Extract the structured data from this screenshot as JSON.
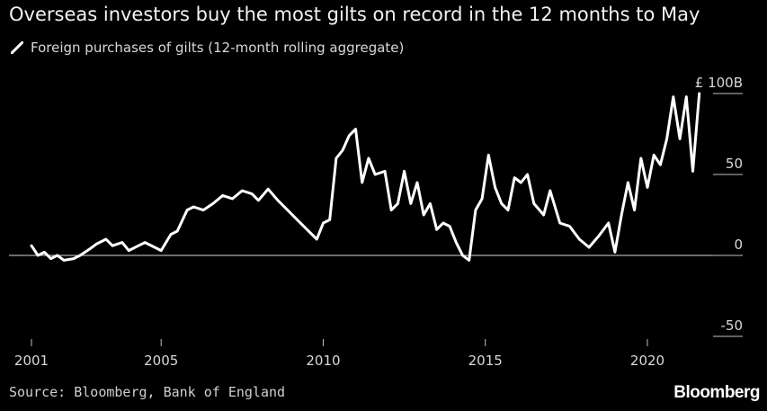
{
  "title": "Overseas investors buy the most gilts on record in the 12 months to May",
  "source": "Source: Bloomberg, Bank of England",
  "brand": "Bloomberg",
  "colors": {
    "background": "#000000",
    "line": "#ffffff",
    "text": "#d8d8d8"
  },
  "chart_data": {
    "type": "line",
    "title": "Overseas investors buy the most gilts on record in the 12 months to May",
    "xlabel": "",
    "ylabel": "",
    "y_unit_prefix": "£",
    "y_unit_suffix": "B",
    "xlim": [
      2001,
      2021.7
    ],
    "ylim": [
      -50,
      100
    ],
    "y_ticks": [
      100,
      50,
      0,
      -50
    ],
    "y_tick_labels": [
      "£ 100B",
      "50",
      "0",
      "-50"
    ],
    "x_ticks": [
      2001,
      2005,
      2010,
      2015,
      2020
    ],
    "x_tick_labels": [
      "2001",
      "2005",
      "2010",
      "2015",
      "2020"
    ],
    "legend": "top-left",
    "grid": false,
    "series": [
      {
        "name": "Foreign purchases of gilts (12-month rolling aggregate)",
        "x": [
          2001.0,
          2001.2,
          2001.4,
          2001.6,
          2001.8,
          2002.0,
          2002.3,
          2002.5,
          2002.8,
          2003.0,
          2003.3,
          2003.5,
          2003.8,
          2004.0,
          2004.3,
          2004.5,
          2004.8,
          2005.0,
          2005.3,
          2005.5,
          2005.8,
          2006.0,
          2006.3,
          2006.6,
          2006.9,
          2007.2,
          2007.5,
          2007.8,
          2008.0,
          2008.3,
          2008.6,
          2008.9,
          2009.2,
          2009.5,
          2009.8,
          2010.0,
          2010.2,
          2010.4,
          2010.6,
          2010.8,
          2011.0,
          2011.2,
          2011.4,
          2011.6,
          2011.9,
          2012.1,
          2012.3,
          2012.5,
          2012.7,
          2012.9,
          2013.1,
          2013.3,
          2013.5,
          2013.7,
          2013.9,
          2014.1,
          2014.3,
          2014.5,
          2014.7,
          2014.9,
          2015.1,
          2015.3,
          2015.5,
          2015.7,
          2015.9,
          2016.1,
          2016.3,
          2016.5,
          2016.8,
          2017.0,
          2017.3,
          2017.6,
          2017.9,
          2018.2,
          2018.5,
          2018.8,
          2019.0,
          2019.2,
          2019.4,
          2019.6,
          2019.8,
          2020.0,
          2020.2,
          2020.4,
          2020.6,
          2020.8,
          2021.0,
          2021.2,
          2021.4,
          2021.6
        ],
        "values": [
          6,
          0,
          2,
          -2,
          0,
          -3,
          -2,
          0,
          4,
          7,
          10,
          6,
          8,
          3,
          6,
          8,
          5,
          3,
          13,
          15,
          28,
          30,
          28,
          32,
          37,
          35,
          40,
          38,
          34,
          41,
          34,
          28,
          22,
          16,
          10,
          20,
          22,
          60,
          65,
          74,
          78,
          45,
          60,
          50,
          52,
          28,
          32,
          52,
          32,
          45,
          25,
          32,
          16,
          20,
          18,
          8,
          0,
          -3,
          28,
          35,
          62,
          42,
          32,
          28,
          48,
          45,
          50,
          32,
          25,
          40,
          20,
          18,
          10,
          5,
          12,
          20,
          2,
          25,
          45,
          28,
          60,
          42,
          62,
          56,
          72,
          98,
          72,
          98,
          52,
          100
        ]
      }
    ]
  }
}
